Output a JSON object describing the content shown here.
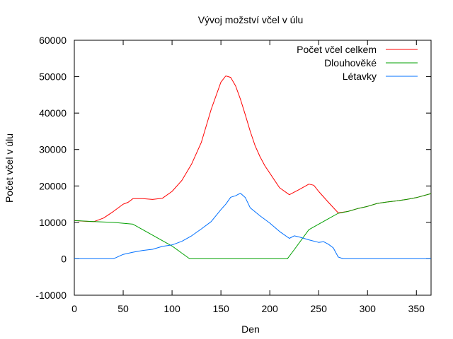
{
  "chart_data": {
    "type": "line",
    "title": "Vývoj možství včel v úlu",
    "xlabel": "Den",
    "ylabel": "Počet včel v úlu",
    "xlim": [
      0,
      365
    ],
    "ylim": [
      -10000,
      60000
    ],
    "xticks": [
      0,
      50,
      100,
      150,
      200,
      250,
      300,
      350
    ],
    "yticks": [
      -10000,
      0,
      10000,
      20000,
      30000,
      40000,
      50000,
      60000
    ],
    "grid": false,
    "legend": "top-right",
    "series": [
      {
        "name": "Počet včel celkem",
        "color": "#ff0000",
        "x": [
          0,
          10,
          20,
          30,
          40,
          50,
          55,
          60,
          70,
          80,
          90,
          100,
          110,
          120,
          130,
          140,
          150,
          155,
          160,
          165,
          170,
          175,
          180,
          185,
          190,
          195,
          200,
          210,
          220,
          230,
          240,
          245,
          250,
          260,
          270,
          280,
          290,
          300,
          310,
          320,
          330,
          340,
          350,
          365
        ],
        "y": [
          10500,
          10300,
          10200,
          11200,
          13000,
          15000,
          15500,
          16500,
          16500,
          16300,
          16600,
          18500,
          21500,
          26000,
          32000,
          41000,
          48500,
          50200,
          49800,
          47500,
          43800,
          39500,
          35000,
          31000,
          28000,
          25500,
          23500,
          19500,
          17600,
          19000,
          20500,
          20200,
          18500,
          15500,
          12600,
          13000,
          13800,
          14400,
          15200,
          15600,
          15900,
          16300,
          16800,
          17900
        ]
      },
      {
        "name": "Dlouhověké",
        "color": "#00a000",
        "x": [
          0,
          20,
          40,
          60,
          80,
          100,
          118,
          150,
          200,
          218,
          225,
          240,
          250,
          260,
          270,
          280,
          290,
          300,
          310,
          320,
          330,
          340,
          350,
          365
        ],
        "y": [
          10500,
          10200,
          10000,
          9500,
          6500,
          3500,
          0,
          0,
          0,
          0,
          2500,
          8000,
          9500,
          11000,
          12500,
          13000,
          13800,
          14400,
          15200,
          15600,
          15900,
          16300,
          16800,
          17900
        ]
      },
      {
        "name": "Létavky",
        "color": "#0070ff",
        "x": [
          0,
          20,
          40,
          50,
          60,
          70,
          80,
          90,
          100,
          110,
          120,
          130,
          140,
          150,
          155,
          160,
          165,
          170,
          175,
          180,
          190,
          200,
          210,
          220,
          225,
          230,
          240,
          250,
          255,
          260,
          265,
          270,
          275,
          280,
          300,
          365
        ],
        "y": [
          0,
          0,
          0,
          1200,
          1800,
          2300,
          2600,
          3400,
          3800,
          4800,
          6300,
          8200,
          10200,
          13500,
          15000,
          16900,
          17300,
          18000,
          16800,
          14000,
          11800,
          9800,
          7500,
          5600,
          6300,
          6000,
          5200,
          4500,
          4700,
          4000,
          3000,
          500,
          0,
          0,
          0,
          0
        ]
      }
    ]
  }
}
